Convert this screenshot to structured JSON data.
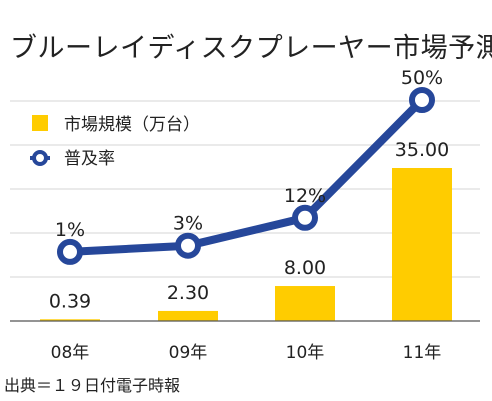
{
  "chart_data": {
    "type": "bar",
    "title": "ブルーレイディスクプレーヤー市場予測",
    "categories": [
      "08年",
      "09年",
      "10年",
      "11年"
    ],
    "series": [
      {
        "name": "市場規模（万台）",
        "type": "bar",
        "values": [
          0.39,
          2.3,
          8.0,
          35.0
        ],
        "labels": [
          "0.39",
          "2.30",
          "8.00",
          "35.00"
        ],
        "color": "#FFCC00"
      },
      {
        "name": "普及率",
        "type": "line",
        "values": [
          1,
          3,
          12,
          50
        ],
        "labels": [
          "1%",
          "3%",
          "12%",
          "50%"
        ],
        "unit": "%",
        "color": "#26479A"
      }
    ],
    "grid": true,
    "legend_position": "top-left",
    "source": "出典＝１９日付電子時報"
  }
}
